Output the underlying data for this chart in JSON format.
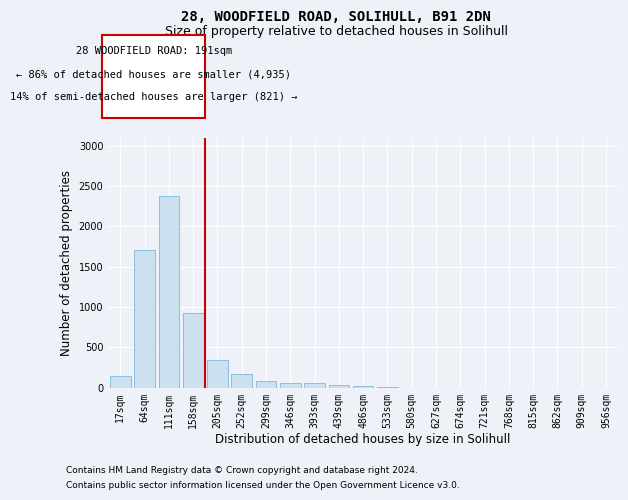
{
  "title": "28, WOODFIELD ROAD, SOLIHULL, B91 2DN",
  "subtitle": "Size of property relative to detached houses in Solihull",
  "xlabel": "Distribution of detached houses by size in Solihull",
  "ylabel": "Number of detached properties",
  "bin_labels": [
    "17sqm",
    "64sqm",
    "111sqm",
    "158sqm",
    "205sqm",
    "252sqm",
    "299sqm",
    "346sqm",
    "393sqm",
    "439sqm",
    "486sqm",
    "533sqm",
    "580sqm",
    "627sqm",
    "674sqm",
    "721sqm",
    "768sqm",
    "815sqm",
    "862sqm",
    "909sqm",
    "956sqm"
  ],
  "bar_values": [
    140,
    1700,
    2380,
    920,
    340,
    165,
    85,
    60,
    50,
    30,
    20,
    5,
    0,
    0,
    0,
    0,
    0,
    0,
    0,
    0,
    0
  ],
  "bar_color": "#cce0f0",
  "bar_edge_color": "#6baed6",
  "property_line_x": 3.5,
  "annotation_title": "28 WOODFIELD ROAD: 191sqm",
  "annotation_line1": "← 86% of detached houses are smaller (4,935)",
  "annotation_line2": "14% of semi-detached houses are larger (821) →",
  "annotation_box_color": "#ffffff",
  "annotation_box_edge": "#cc0000",
  "vline_color": "#cc0000",
  "ylim": [
    0,
    3100
  ],
  "yticks": [
    0,
    500,
    1000,
    1500,
    2000,
    2500,
    3000
  ],
  "footnote1": "Contains HM Land Registry data © Crown copyright and database right 2024.",
  "footnote2": "Contains public sector information licensed under the Open Government Licence v3.0.",
  "bg_color": "#eef2f8",
  "plot_bg_color": "#eef2f8",
  "grid_color": "#ffffff",
  "title_fontsize": 10,
  "subtitle_fontsize": 9,
  "axis_label_fontsize": 8.5,
  "tick_fontsize": 7,
  "annotation_fontsize": 7.5,
  "footnote_fontsize": 6.5
}
